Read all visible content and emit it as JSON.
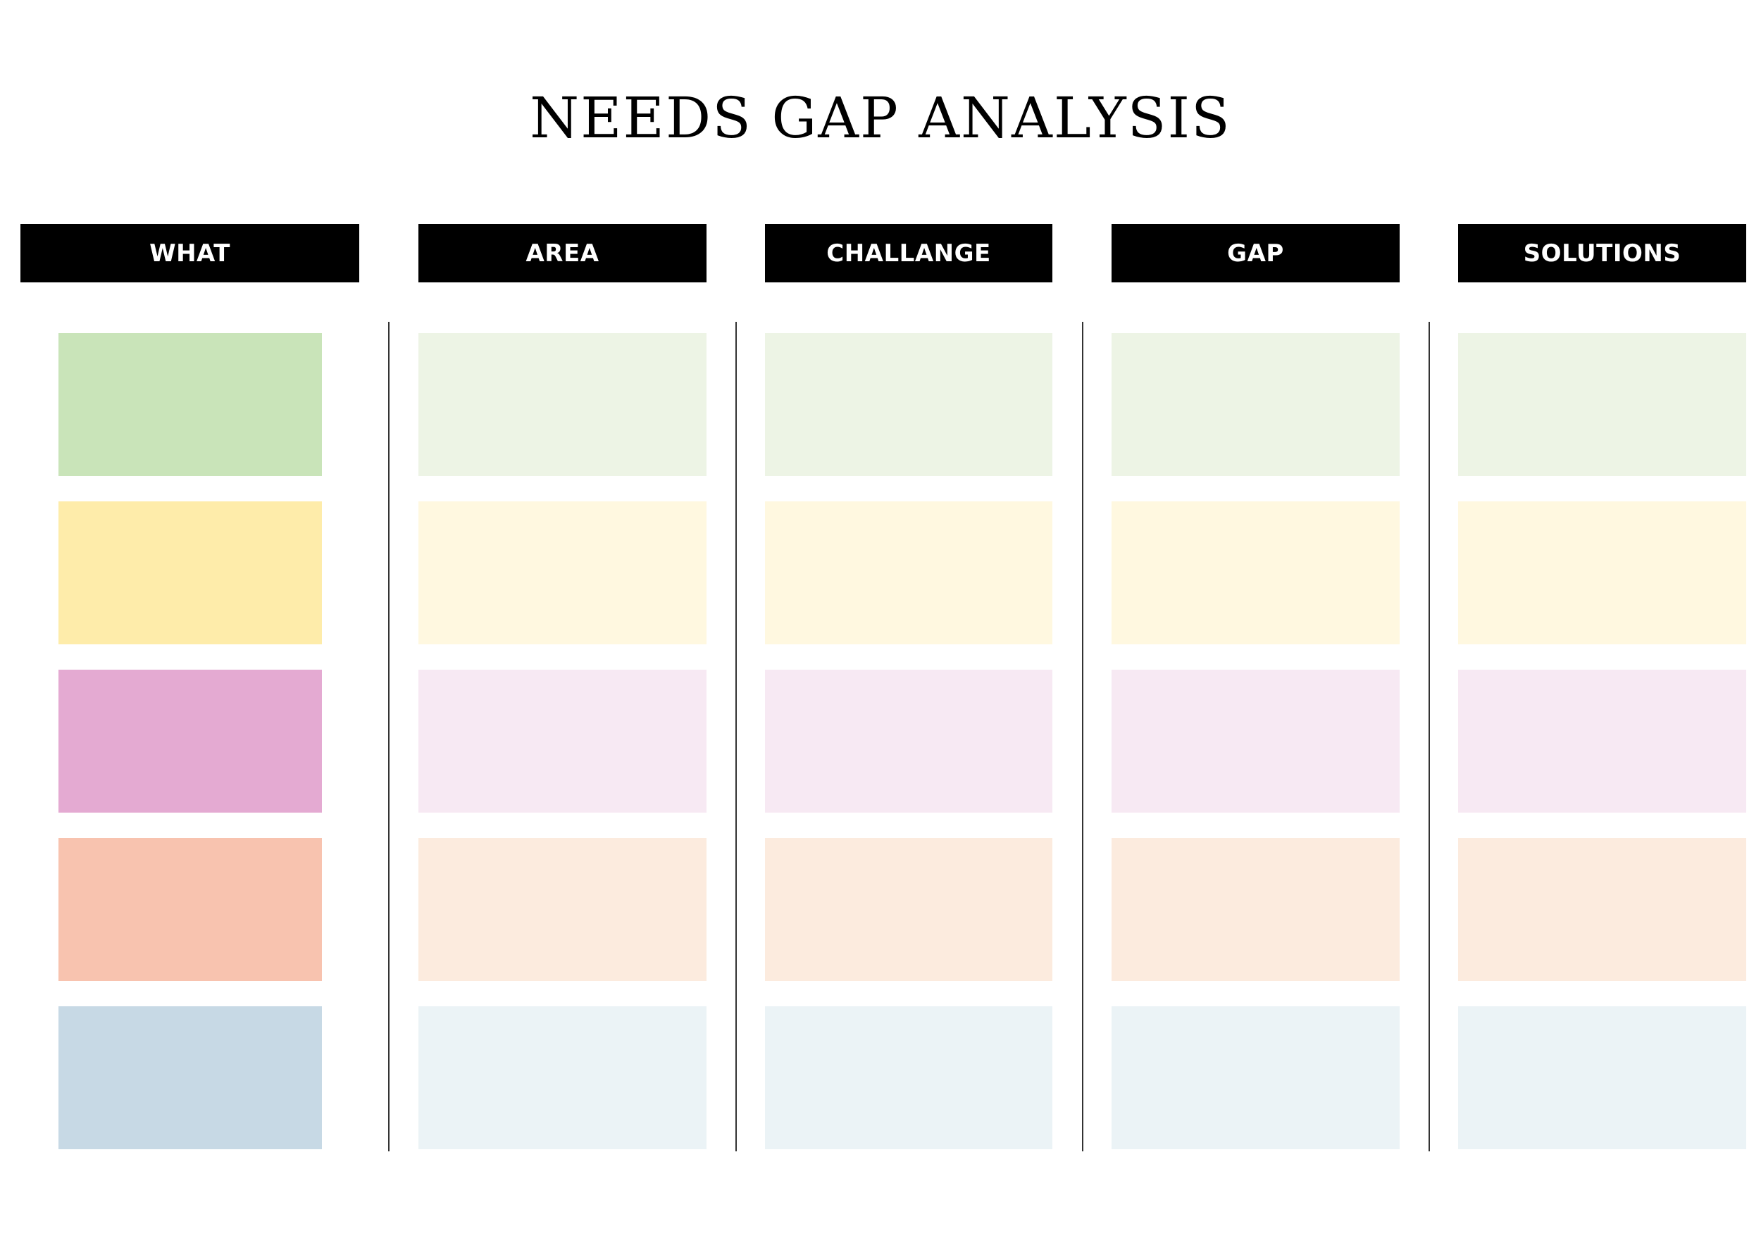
{
  "title": "NEEDS GAP ANALYSIS",
  "columns": [
    "WHAT",
    "AREA",
    "CHALLANGE",
    "GAP",
    "SOLUTIONS"
  ],
  "colors": {
    "header_bg": "#000000",
    "header_text": "#ffffff",
    "rows": [
      {
        "strong": "#c9e4b9",
        "light": "#edf4e5"
      },
      {
        "strong": "#feecaa",
        "light": "#fff8e0"
      },
      {
        "strong": "#e4aad2",
        "light": "#f7e9f3"
      },
      {
        "strong": "#f8c3af",
        "light": "#fcebde"
      },
      {
        "strong": "#c7d9e5",
        "light": "#ebf3f6"
      }
    ]
  }
}
